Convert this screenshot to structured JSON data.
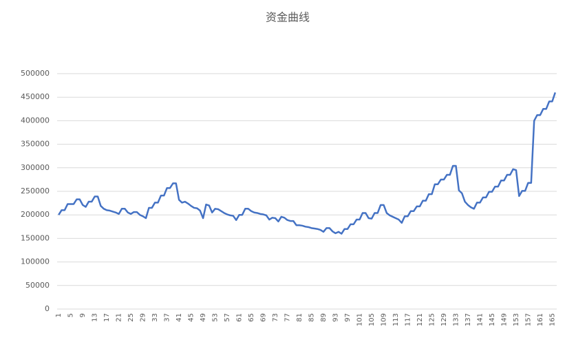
{
  "chart_data": {
    "type": "line",
    "title": "资金曲线",
    "categories": [
      "1",
      null,
      null,
      null,
      "5",
      null,
      null,
      null,
      "9",
      null,
      null,
      null,
      "13",
      null,
      null,
      null,
      "17",
      null,
      null,
      null,
      "21",
      null,
      null,
      null,
      "25",
      null,
      null,
      null,
      "29",
      null,
      null,
      null,
      "33",
      null,
      null,
      null,
      "37",
      null,
      null,
      null,
      "41",
      null,
      null,
      null,
      "45",
      null,
      null,
      null,
      "49",
      null,
      null,
      null,
      "53",
      null,
      null,
      null,
      "57",
      null,
      null,
      null,
      "61",
      null,
      null,
      null,
      "65",
      null,
      null,
      null,
      "69",
      null,
      null,
      null,
      "73",
      null,
      null,
      null,
      "77",
      null,
      null,
      null,
      "81",
      null,
      null,
      null,
      "85",
      null,
      null,
      null,
      "89",
      null,
      null,
      null,
      "93",
      null,
      null,
      null,
      "97",
      null,
      null,
      null,
      "101",
      null,
      null,
      null,
      "105",
      null,
      null,
      null,
      "109",
      null,
      null,
      null,
      "113",
      null,
      null,
      null,
      "117",
      null,
      null,
      null,
      "121",
      null,
      null,
      null,
      "125",
      null,
      null,
      null,
      "129",
      null,
      null,
      null,
      "133",
      null,
      null,
      null,
      "137",
      null,
      null,
      null,
      "141",
      null,
      null,
      null,
      "145",
      null,
      null,
      null,
      "149",
      null,
      null,
      null,
      "153",
      null,
      null,
      null,
      "157",
      null,
      null,
      null,
      "161",
      null,
      null,
      null,
      "165",
      null
    ],
    "values": [
      200000,
      210000,
      210000,
      223000,
      223000,
      223000,
      233000,
      233000,
      221000,
      217000,
      228000,
      228000,
      239000,
      239000,
      219000,
      213000,
      210000,
      209000,
      207000,
      205000,
      202000,
      213000,
      213000,
      205000,
      202000,
      206000,
      206000,
      200000,
      197000,
      193000,
      215000,
      215000,
      226000,
      226000,
      241000,
      241000,
      257000,
      257000,
      267000,
      267000,
      232000,
      226000,
      228000,
      224000,
      219000,
      215000,
      214000,
      209000,
      193000,
      222000,
      220000,
      205000,
      213000,
      212000,
      208000,
      204000,
      201000,
      199000,
      198000,
      189000,
      200000,
      200000,
      213000,
      213000,
      208000,
      205000,
      204000,
      202000,
      201000,
      199000,
      190000,
      194000,
      193000,
      186000,
      196000,
      194000,
      189000,
      187000,
      187000,
      178000,
      178000,
      177000,
      175000,
      174000,
      172000,
      171000,
      170000,
      168000,
      164000,
      172000,
      172000,
      165000,
      161000,
      164000,
      160000,
      170000,
      170000,
      180000,
      180000,
      190000,
      190000,
      204000,
      204000,
      193000,
      192000,
      204000,
      204000,
      221000,
      221000,
      204000,
      199000,
      196000,
      193000,
      190000,
      183000,
      197000,
      197000,
      208000,
      208000,
      218000,
      218000,
      230000,
      230000,
      244000,
      244000,
      265000,
      265000,
      275000,
      275000,
      285000,
      285000,
      304000,
      304000,
      252000,
      246000,
      228000,
      221000,
      216000,
      213000,
      226000,
      226000,
      237000,
      237000,
      249000,
      249000,
      260000,
      260000,
      273000,
      273000,
      285000,
      285000,
      297000,
      295000,
      240000,
      251000,
      251000,
      268000,
      268000,
      400000,
      412000,
      412000,
      425000,
      425000,
      441000,
      441000,
      460000
    ],
    "color": "#4472c4",
    "ylim": [
      0,
      500000
    ],
    "yticks": [
      0,
      50000,
      100000,
      150000,
      200000,
      250000,
      300000,
      350000,
      400000,
      450000,
      500000
    ],
    "grid": true
  }
}
